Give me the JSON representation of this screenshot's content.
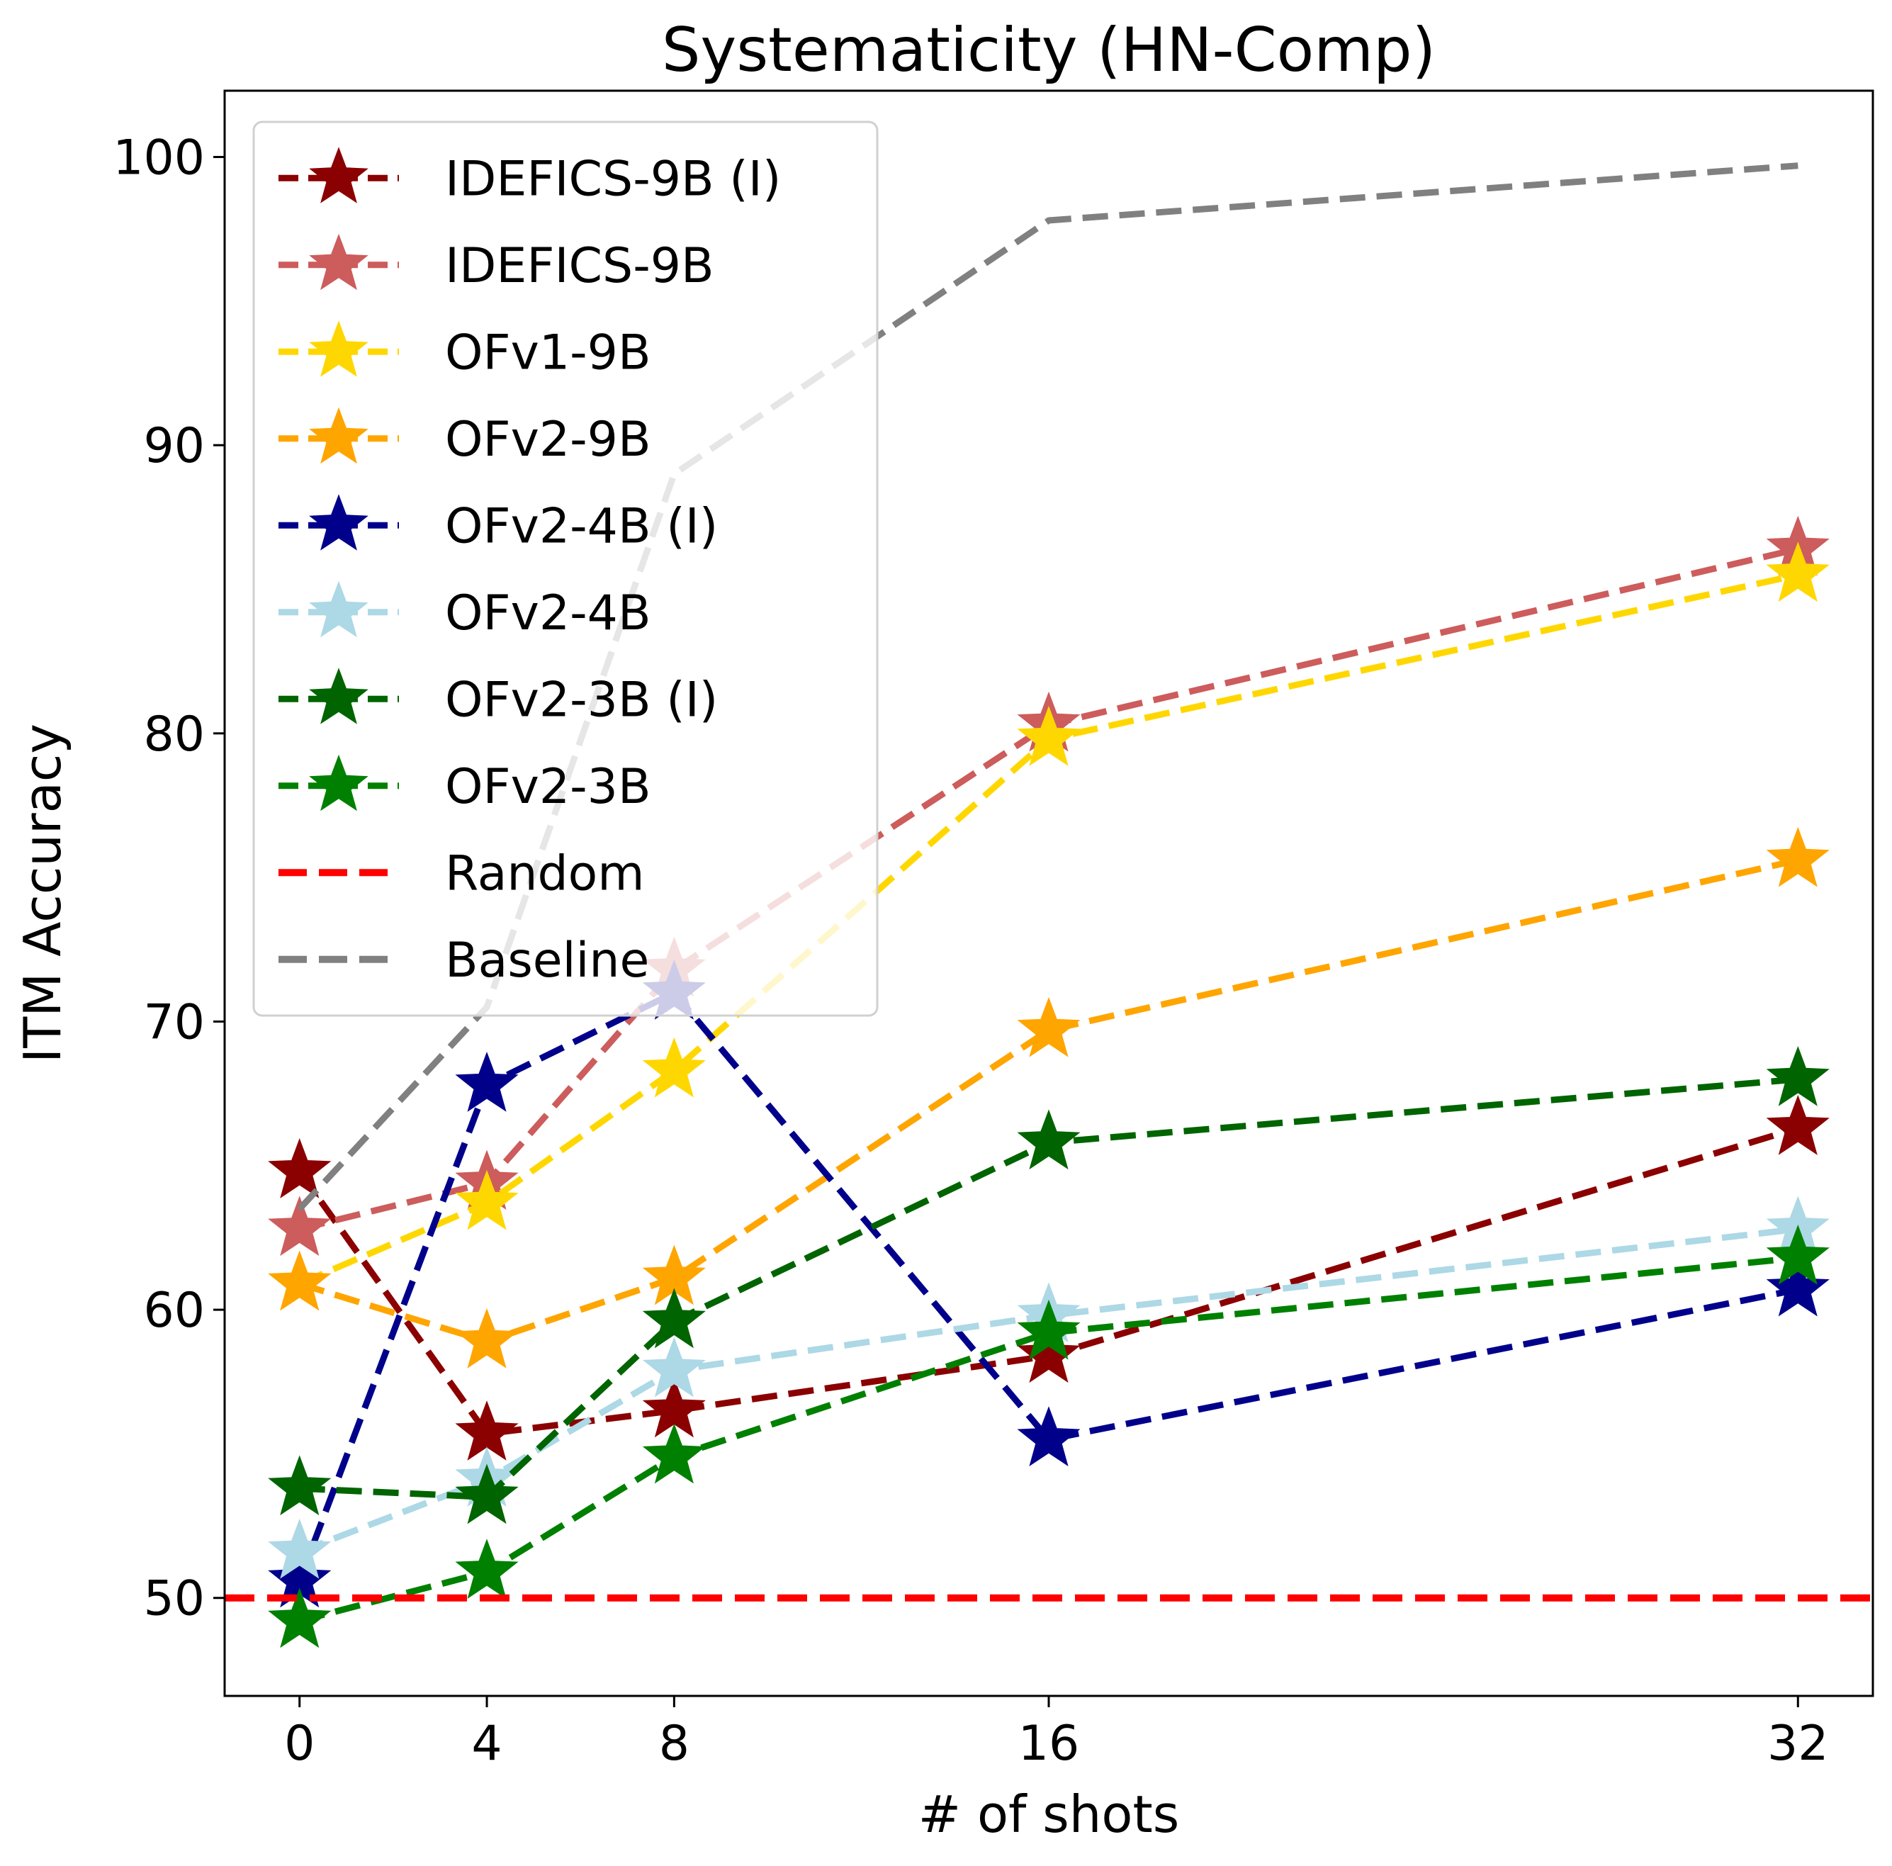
{
  "chart_data": {
    "type": "line",
    "title": "Systematicity (HN-Comp)",
    "xlabel": "# of shots",
    "ylabel": "ITM Accuracy",
    "x": [
      0,
      4,
      8,
      16,
      32
    ],
    "xticks": [
      0,
      4,
      8,
      16,
      32
    ],
    "yticks": [
      50,
      60,
      70,
      80,
      90,
      100
    ],
    "xlim": [
      -1.6,
      33.6
    ],
    "ylim": [
      46.6,
      102.3
    ],
    "grid": false,
    "legend_position": "top-left",
    "series": [
      {
        "name": "IDEFICS-9B (I)",
        "color": "#8b0000",
        "marker": "star",
        "values": [
          64.8,
          55.7,
          56.5,
          58.4,
          66.3
        ]
      },
      {
        "name": "IDEFICS-9B",
        "color": "#cd5c5c",
        "marker": "star",
        "values": [
          62.8,
          64.4,
          71.8,
          80.3,
          86.4
        ]
      },
      {
        "name": "OFv1-9B",
        "color": "#ffd700",
        "marker": "star",
        "values": [
          60.9,
          63.7,
          68.3,
          79.8,
          85.5
        ]
      },
      {
        "name": "OFv2-9B",
        "color": "#ffa500",
        "marker": "star",
        "values": [
          60.9,
          58.9,
          61.1,
          69.7,
          75.6
        ]
      },
      {
        "name": "OFv2-4B (I)",
        "color": "#00008b",
        "marker": "star",
        "values": [
          50.6,
          67.8,
          71.0,
          55.5,
          60.7
        ]
      },
      {
        "name": "OFv2-4B",
        "color": "#add8e6",
        "marker": "star",
        "values": [
          51.6,
          54.1,
          57.9,
          59.8,
          62.8
        ]
      },
      {
        "name": "OFv2-3B (I)",
        "color": "#006400",
        "marker": "star",
        "values": [
          53.8,
          53.5,
          59.6,
          65.8,
          68.0
        ]
      },
      {
        "name": "OFv2-3B",
        "color": "#008000",
        "marker": "star",
        "values": [
          49.2,
          50.9,
          54.9,
          59.2,
          61.8
        ]
      },
      {
        "name": "Random",
        "color": "#ff0000",
        "marker": "none",
        "values": [
          50,
          50,
          50,
          50,
          50
        ]
      },
      {
        "name": "Baseline",
        "color": "#808080",
        "marker": "none",
        "values": [
          63.5,
          70.5,
          89.0,
          97.8,
          99.7
        ]
      }
    ]
  }
}
